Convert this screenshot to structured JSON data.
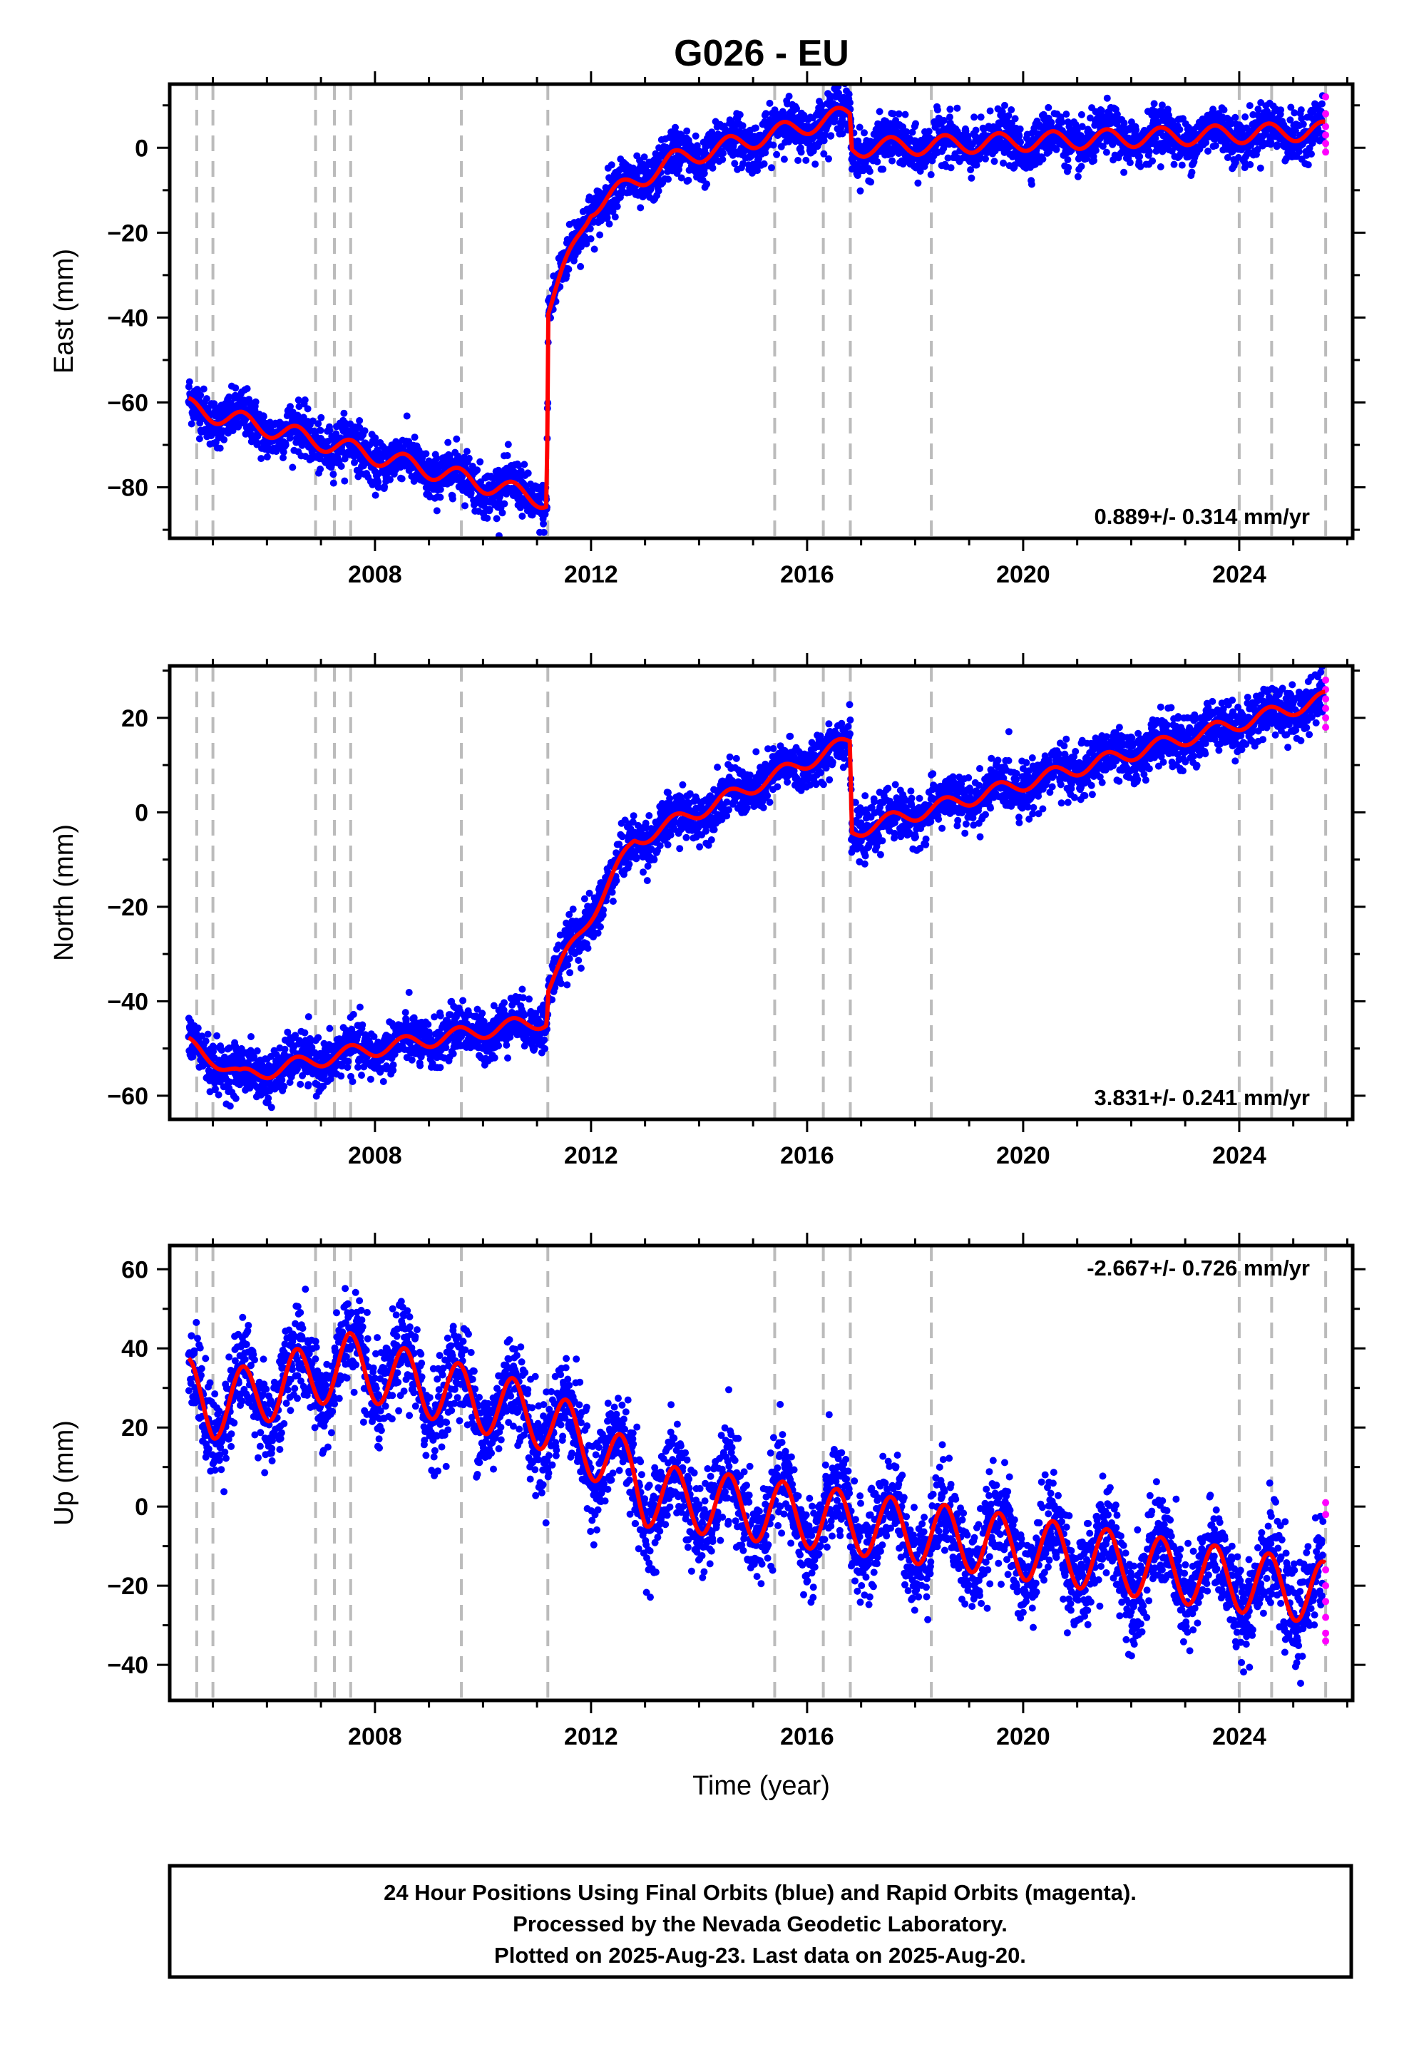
{
  "title": "G026 - EU",
  "footer": [
    "24 Hour Positions Using Final Orbits (blue) and Rapid Orbits (magenta).",
    "Processed by the Nevada Geodetic Laboratory.",
    "Plotted on 2025-Aug-23. Last data on 2025-Aug-20."
  ],
  "colors": {
    "final": "#0000ff",
    "rapid": "#ff00ff",
    "model": "#ff0000",
    "events": "#bbbbbb"
  },
  "chart_data": [
    {
      "type": "scatter",
      "name": "east",
      "ylabel": "East (mm)",
      "xlim": [
        2004.2,
        2026.1
      ],
      "ylim": [
        -92,
        15
      ],
      "xticks": [
        2008,
        2012,
        2016,
        2020,
        2024
      ],
      "yticks": [
        -80,
        -60,
        -40,
        -20,
        0
      ],
      "rate": "0.889+/- 0.314 mm/yr",
      "rate_position": "bottom-right",
      "events": [
        2004.7,
        2005.0,
        2006.9,
        2007.25,
        2007.55,
        2009.6,
        2011.2,
        2015.4,
        2016.3,
        2016.8,
        2018.3,
        2024.0,
        2024.6,
        2025.6
      ],
      "model": {
        "knots": [
          [
            2004.5,
            -61
          ],
          [
            2011.18,
            -83
          ],
          [
            2011.21,
            -38
          ],
          [
            2012.0,
            -14
          ],
          [
            2013.5,
            -3
          ],
          [
            2016.8,
            8
          ],
          [
            2016.82,
            0
          ],
          [
            2025.6,
            4
          ]
        ],
        "seasonal_amp": 2.2,
        "noise": 2.8
      },
      "rapid_values": [
        12,
        8,
        5,
        3,
        1,
        -1
      ]
    },
    {
      "type": "scatter",
      "name": "north",
      "ylabel": "North (mm)",
      "xlim": [
        2004.2,
        2026.1
      ],
      "ylim": [
        -65,
        31
      ],
      "xticks": [
        2008,
        2012,
        2016,
        2020,
        2024
      ],
      "yticks": [
        -60,
        -40,
        -20,
        0,
        20
      ],
      "rate": "3.831+/- 0.241 mm/yr",
      "rate_position": "bottom-right",
      "events": [
        2004.7,
        2005.0,
        2006.9,
        2007.25,
        2007.55,
        2009.6,
        2011.2,
        2015.4,
        2016.3,
        2016.8,
        2018.3,
        2024.0,
        2024.6,
        2025.6
      ],
      "model": {
        "knots": [
          [
            2004.5,
            -49
          ],
          [
            2005.0,
            -52
          ],
          [
            2005.5,
            -56
          ],
          [
            2007.5,
            -51
          ],
          [
            2011.18,
            -44
          ],
          [
            2011.21,
            -37
          ],
          [
            2012.8,
            -6
          ],
          [
            2016.8,
            15
          ],
          [
            2016.82,
            -4
          ],
          [
            2025.6,
            24
          ]
        ],
        "seasonal_amp": 1.6,
        "noise": 2.6
      },
      "rapid_values": [
        28,
        26,
        24,
        22,
        20,
        18
      ]
    },
    {
      "type": "scatter",
      "name": "up",
      "ylabel": "Up (mm)",
      "xlabel": "Time (year)",
      "xlim": [
        2004.2,
        2026.1
      ],
      "ylim": [
        -49,
        66
      ],
      "xticks": [
        2008,
        2012,
        2016,
        2020,
        2024
      ],
      "yticks": [
        -40,
        -20,
        0,
        20,
        40,
        60
      ],
      "rate": "-2.667+/- 0.726 mm/yr",
      "rate_position": "top-right",
      "events": [
        2004.7,
        2005.0,
        2006.9,
        2007.25,
        2007.55,
        2009.6,
        2011.2,
        2015.4,
        2016.3,
        2016.8,
        2018.3,
        2024.0,
        2024.6,
        2025.6
      ],
      "model": {
        "knots": [
          [
            2004.5,
            30
          ],
          [
            2005.0,
            25
          ],
          [
            2007.5,
            36
          ],
          [
            2011.2,
            22
          ],
          [
            2012.8,
            8
          ],
          [
            2013.0,
            3
          ],
          [
            2016.8,
            -4
          ],
          [
            2025.6,
            -22
          ]
        ],
        "seasonal_amp": 8,
        "noise": 6
      },
      "rapid_values": [
        1,
        -2,
        -16,
        -20,
        -24,
        -28,
        -32,
        -34
      ]
    }
  ]
}
